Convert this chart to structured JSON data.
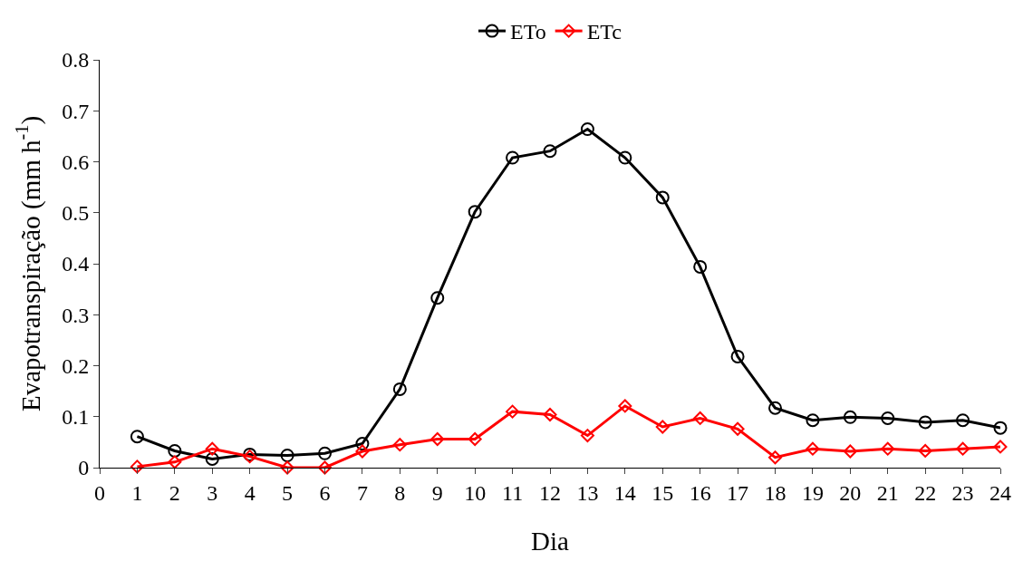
{
  "chart_data": {
    "type": "line",
    "xlabel": "Dia",
    "ylabel": "Evapotranspiração (mm h$^{-1}$)",
    "x": [
      1,
      2,
      3,
      4,
      5,
      6,
      7,
      8,
      9,
      10,
      11,
      12,
      13,
      14,
      15,
      16,
      17,
      18,
      19,
      20,
      21,
      22,
      23,
      24
    ],
    "series": [
      {
        "name": "ETo",
        "color": "#000000",
        "marker": "circle",
        "values": [
          0.061,
          0.033,
          0.017,
          0.026,
          0.024,
          0.028,
          0.047,
          0.154,
          0.333,
          0.502,
          0.608,
          0.621,
          0.664,
          0.608,
          0.53,
          0.394,
          0.218,
          0.117,
          0.093,
          0.099,
          0.097,
          0.089,
          0.093,
          0.078
        ]
      },
      {
        "name": "ETc",
        "color": "#ff0000",
        "marker": "diamond",
        "values": [
          0.002,
          0.011,
          0.037,
          0.022,
          0.0,
          0.0,
          0.032,
          0.045,
          0.056,
          0.056,
          0.11,
          0.104,
          0.063,
          0.121,
          0.08,
          0.097,
          0.076,
          0.02,
          0.037,
          0.032,
          0.037,
          0.033,
          0.037,
          0.041
        ]
      }
    ],
    "xlim": [
      0,
      24
    ],
    "xticks": [
      0,
      1,
      2,
      3,
      4,
      5,
      6,
      7,
      8,
      9,
      10,
      11,
      12,
      13,
      14,
      15,
      16,
      17,
      18,
      19,
      20,
      21,
      22,
      23,
      24
    ],
    "ylim": [
      0,
      0.8
    ],
    "yticks": [
      {
        "value": 0,
        "label": "0"
      },
      0.1,
      0.2,
      0.3,
      0.4,
      0.5,
      0.6,
      0.7,
      0.8
    ],
    "legend": "top",
    "line_style": "solid"
  }
}
